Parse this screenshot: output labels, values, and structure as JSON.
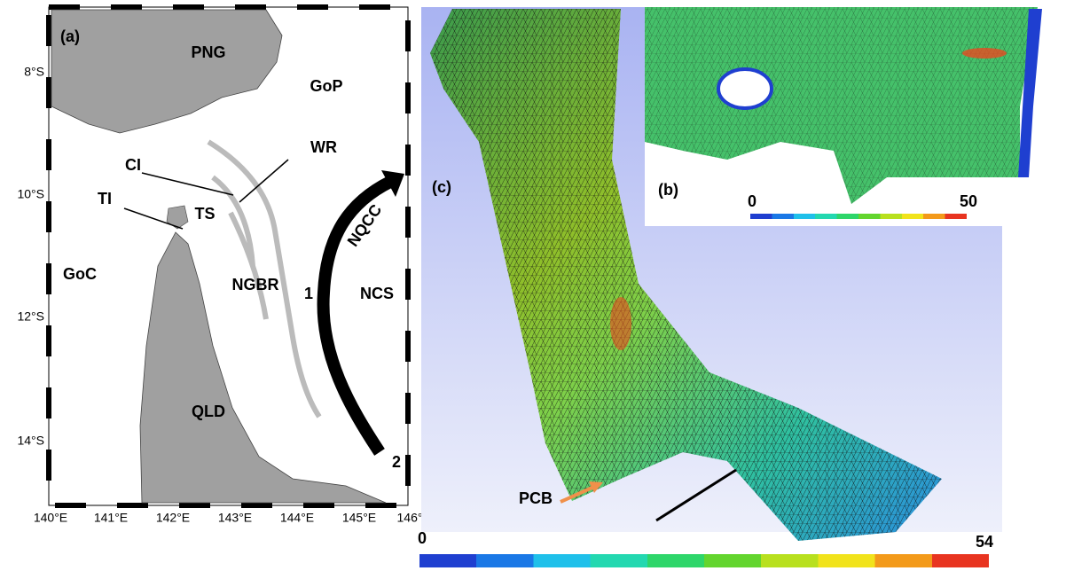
{
  "panel_a": {
    "label": "(a)",
    "regions": [
      "PNG",
      "GoP",
      "CI",
      "WR",
      "TI",
      "TS",
      "GoC",
      "NGBR",
      "NCS",
      "QLD"
    ],
    "current": "NQCC",
    "points": [
      "1",
      "2"
    ],
    "lat_labels": [
      "8°S",
      "10°S",
      "12°S",
      "14°S"
    ],
    "lon_labels": [
      "140°E",
      "141°E",
      "142°E",
      "143°E",
      "144°E",
      "145°E",
      "146°"
    ]
  },
  "panel_b": {
    "label": "(b)",
    "colorbar": {
      "min": 0,
      "max": 50
    }
  },
  "panel_c": {
    "label": "(c)",
    "site": "PCB",
    "colorbar": {
      "min": 0,
      "max": 54
    }
  }
}
